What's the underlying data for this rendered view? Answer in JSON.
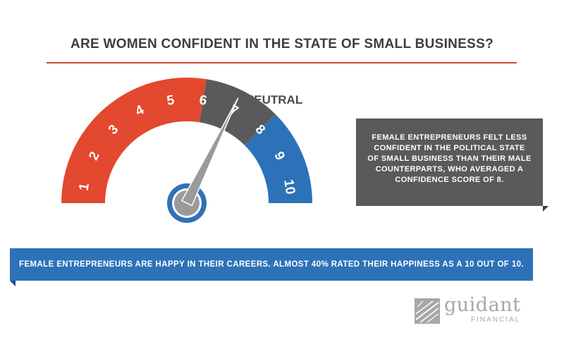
{
  "title": "ARE WOMEN CONFIDENT IN THE STATE OF SMALL BUSINESS?",
  "gauge": {
    "neutral_label": "NEUTRAL",
    "scale_min": 1,
    "scale_max": 10,
    "pointer_value": 7,
    "numbers": [
      "1",
      "2",
      "3",
      "4",
      "5",
      "6",
      "7",
      "8",
      "9",
      "10"
    ],
    "segments": [
      {
        "from": 1,
        "to": 6,
        "color": "#e2492f"
      },
      {
        "from": 6,
        "to": 8,
        "color": "#5a595b"
      },
      {
        "from": 8,
        "to": 10,
        "color": "#2d72b8"
      }
    ],
    "needle_color": "#9a9a9c",
    "hub_color": "#2d72b8"
  },
  "note": {
    "text": "FEMALE ENTREPRENEURS FELT LESS CONFIDENT IN THE POLITICAL STATE OF SMALL BUSINESS THAN THEIR MALE COUNTERPARTS, WHO AVERAGED A CONFIDENCE SCORE OF 8.",
    "color": "#5a595b"
  },
  "banner": {
    "text": "FEMALE ENTREPRENEURS ARE HAPPY IN THEIR CAREERS. ALMOST 40% RATED THEIR HAPPINESS AS A 10 OUT OF 10.",
    "color": "#2d72b8"
  },
  "logo": {
    "name": "guidant",
    "sub": "FINANCIAL",
    "icon": "guidant-logo-mark"
  },
  "colors": {
    "title_rule": "#d24a33",
    "title_text": "#3e3d3f"
  }
}
